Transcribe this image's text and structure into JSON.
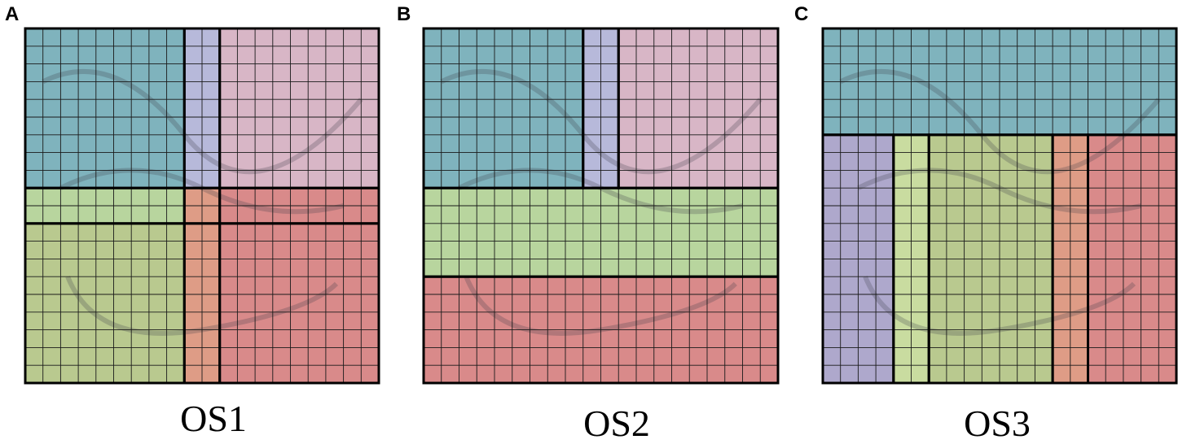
{
  "colors": {
    "teal": "#7fb3bd",
    "lavender": "#b7b9da",
    "pink": "#d8b6c6",
    "green": "#b8d59e",
    "olive": "#b9c98f",
    "salmon": "#de9c86",
    "red": "#d98a8a",
    "yellowgreen": "#c9dca0",
    "purple": "#aea8cc",
    "border": "#000000",
    "grid": "#1a1a1a"
  },
  "panels": [
    {
      "letter": "A",
      "caption": "OS1",
      "regions": [
        {
          "name": "region-top-left",
          "color": "teal",
          "col": [
            0,
            9
          ],
          "row": [
            0,
            9
          ]
        },
        {
          "name": "region-top-middle",
          "color": "lavender",
          "col": [
            9,
            11
          ],
          "row": [
            0,
            9
          ]
        },
        {
          "name": "region-top-right",
          "color": "pink",
          "col": [
            11,
            20
          ],
          "row": [
            0,
            9
          ]
        },
        {
          "name": "region-middle-left",
          "color": "green",
          "col": [
            0,
            9
          ],
          "row": [
            9,
            11
          ]
        },
        {
          "name": "region-center",
          "color": "salmon",
          "col": [
            9,
            11
          ],
          "row": [
            9,
            11
          ]
        },
        {
          "name": "region-middle-right",
          "color": "red",
          "col": [
            11,
            20
          ],
          "row": [
            9,
            11
          ]
        },
        {
          "name": "region-bottom-left",
          "color": "olive",
          "col": [
            0,
            9
          ],
          "row": [
            11,
            20
          ]
        },
        {
          "name": "region-bottom-middle",
          "color": "salmon",
          "col": [
            9,
            11
          ],
          "row": [
            11,
            20
          ]
        },
        {
          "name": "region-bottom-right",
          "color": "red",
          "col": [
            11,
            20
          ],
          "row": [
            11,
            20
          ]
        }
      ]
    },
    {
      "letter": "B",
      "caption": "OS2",
      "regions": [
        {
          "name": "region-top-left",
          "color": "teal",
          "col": [
            0,
            9
          ],
          "row": [
            0,
            9
          ]
        },
        {
          "name": "region-top-middle",
          "color": "lavender",
          "col": [
            9,
            11
          ],
          "row": [
            0,
            9
          ]
        },
        {
          "name": "region-top-right",
          "color": "pink",
          "col": [
            11,
            20
          ],
          "row": [
            0,
            9
          ]
        },
        {
          "name": "region-middle-band",
          "color": "green",
          "col": [
            0,
            20
          ],
          "row": [
            9,
            14
          ]
        },
        {
          "name": "region-bottom-band",
          "color": "red",
          "col": [
            0,
            20
          ],
          "row": [
            14,
            20
          ]
        }
      ]
    },
    {
      "letter": "C",
      "caption": "OS3",
      "regions": [
        {
          "name": "region-top-band",
          "color": "teal",
          "col": [
            0,
            20
          ],
          "row": [
            0,
            6
          ]
        },
        {
          "name": "region-left",
          "color": "purple",
          "col": [
            0,
            4
          ],
          "row": [
            6,
            20
          ]
        },
        {
          "name": "region-left-center",
          "color": "yellowgreen",
          "col": [
            4,
            6
          ],
          "row": [
            6,
            20
          ]
        },
        {
          "name": "region-center",
          "color": "olive",
          "col": [
            6,
            13
          ],
          "row": [
            6,
            20
          ]
        },
        {
          "name": "region-right-center",
          "color": "salmon",
          "col": [
            13,
            15
          ],
          "row": [
            6,
            20
          ]
        },
        {
          "name": "region-right",
          "color": "red",
          "col": [
            15,
            20
          ],
          "row": [
            6,
            20
          ]
        }
      ]
    }
  ]
}
